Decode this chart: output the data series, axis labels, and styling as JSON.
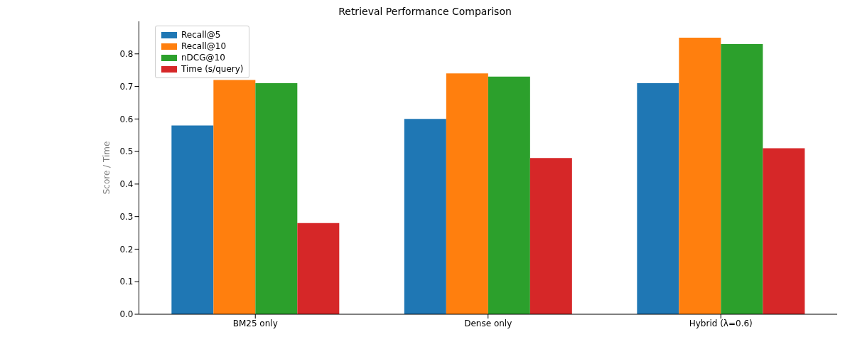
{
  "chart_data": {
    "type": "bar",
    "title": "Retrieval Performance Comparison",
    "ylabel": "Score / Time",
    "categories": [
      "BM25 only",
      "Dense only",
      "Hybrid (λ=0.6)"
    ],
    "series": [
      {
        "name": "Recall@5",
        "color": "#1f77b4",
        "values": [
          0.58,
          0.6,
          0.71
        ]
      },
      {
        "name": "Recall@10",
        "color": "#ff7f0e",
        "values": [
          0.72,
          0.74,
          0.85
        ]
      },
      {
        "name": "nDCG@10",
        "color": "#2ca02c",
        "values": [
          0.71,
          0.73,
          0.83
        ]
      },
      {
        "name": "Time (s/query)",
        "color": "#d62728",
        "values": [
          0.28,
          0.48,
          0.51
        ]
      }
    ],
    "ylim": [
      0,
      0.9
    ],
    "yticks": [
      {
        "value": 0,
        "label": "0.0"
      },
      0.1,
      0.2,
      0.3,
      0.4,
      0.5,
      0.6,
      0.7,
      0.8
    ],
    "grid": false,
    "legend": "top left"
  }
}
